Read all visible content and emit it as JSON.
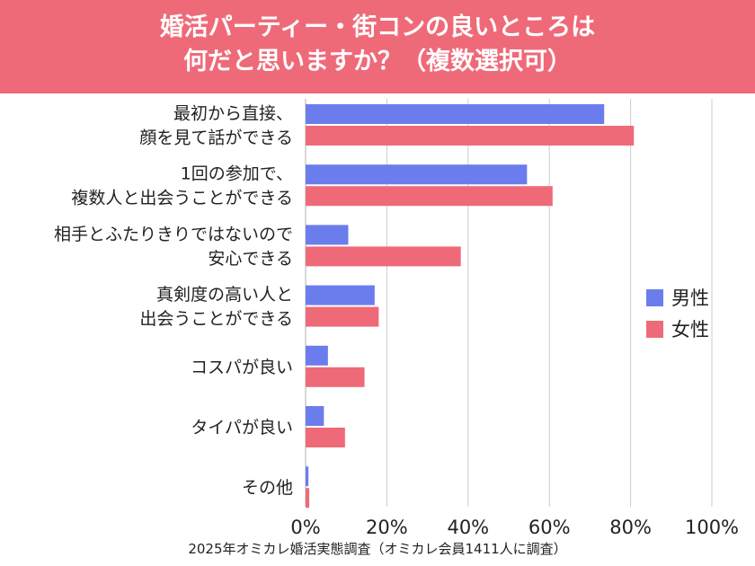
{
  "header": {
    "title_line1": "婚活パーティー・街コンの良いところは",
    "title_line2": "何だと思いますか？（複数選択可）"
  },
  "chart_data": {
    "type": "bar",
    "orientation": "horizontal",
    "title": "婚活パーティー・街コンの良いところは何だと思いますか？（複数選択可）",
    "categories": [
      [
        "最初から直接、",
        "顔を見て話ができる"
      ],
      [
        "1回の参加で、",
        "複数人と出会うことができる"
      ],
      [
        "相手とふたりきりではないので",
        "安心できる"
      ],
      [
        "真剣度の高い人と",
        "出会うことができる"
      ],
      [
        "コスパが良い"
      ],
      [
        "タイパが良い"
      ],
      [
        "その他"
      ]
    ],
    "series": [
      {
        "name": "男性",
        "color": "#6b7ded",
        "values": [
          73.5,
          54.5,
          10.5,
          17.0,
          5.5,
          4.5,
          0.7
        ]
      },
      {
        "name": "女性",
        "color": "#ef6a78",
        "values": [
          80.8,
          60.8,
          38.2,
          18.0,
          14.5,
          9.7,
          0.9
        ]
      }
    ],
    "xlim": [
      0,
      100
    ],
    "ticks": [
      "0%",
      "20%",
      "40%",
      "60%",
      "80%",
      "100%"
    ],
    "tick_values": [
      0,
      20,
      40,
      60,
      80,
      100
    ],
    "grid": true,
    "legend_position": "right",
    "source": "2025年オミカレ婚活実態調査（オミカレ会員1411人に調査）"
  },
  "colors": {
    "header_bg": "#ef6a78",
    "male": "#6b7ded",
    "female": "#ef6a78",
    "grid": "#cccccc"
  }
}
